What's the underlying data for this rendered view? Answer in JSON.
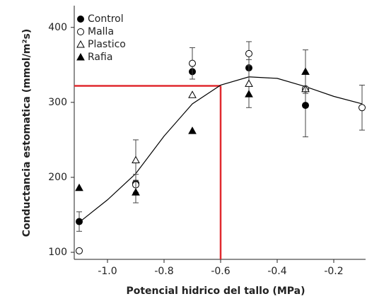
{
  "chart_data": {
    "type": "scatter",
    "x_label": "Potencial hidrico del tallo (MPa)",
    "y_label": "Conductancia estomatica (mmol/m²s)",
    "xlim": [
      -1.1175,
      -0.0875
    ],
    "ylim": [
      90.6,
      429
    ],
    "xticks": [
      {
        "value": -1,
        "label": "-1.0"
      },
      -0.8,
      -0.6,
      -0.4,
      -0.2
    ],
    "yticks": [
      100,
      200,
      300,
      400
    ],
    "legend": "top-left",
    "series": [
      {
        "name": "Control",
        "marker": "filled-circle",
        "color": "#000000",
        "x": [
          -1.1,
          -0.9,
          -0.7,
          -0.5,
          -0.3
        ],
        "values": [
          141,
          192,
          341,
          346,
          296
        ],
        "errors": [
          13,
          12,
          null,
          null,
          42
        ]
      },
      {
        "name": "Malla",
        "marker": "open-circle",
        "color": "#000000",
        "x": [
          -1.1,
          -0.9,
          -0.7,
          -0.5,
          -0.3,
          -0.1
        ],
        "values": [
          102,
          190,
          352,
          365,
          318,
          293
        ],
        "errors": [
          null,
          null,
          21,
          16,
          null,
          30
        ]
      },
      {
        "name": "Plastico",
        "marker": "open-triangle",
        "color": "#000000",
        "x": [
          -0.9,
          -0.7,
          -0.5,
          -0.3
        ],
        "values": [
          223,
          310,
          325,
          318
        ],
        "errors": [
          27,
          null,
          32,
          null
        ]
      },
      {
        "name": "Rafia",
        "marker": "filled-triangle",
        "color": "#000000",
        "x": [
          -1.1,
          -0.9,
          -0.7,
          -0.5,
          -0.3
        ],
        "values": [
          186,
          180,
          262,
          311,
          341
        ],
        "errors": [
          null,
          14,
          null,
          null,
          29
        ]
      }
    ],
    "curve": {
      "color": "#000000",
      "x": [
        -1.1,
        -1.0,
        -0.9,
        -0.8,
        -0.7,
        -0.6,
        -0.5,
        -0.4,
        -0.3,
        -0.2,
        -0.1
      ],
      "values": [
        140,
        170,
        205,
        255,
        298,
        323,
        334,
        332,
        321,
        308,
        298
      ]
    },
    "reference": {
      "x": -0.6,
      "y": 322,
      "color": "#e0292f"
    }
  }
}
